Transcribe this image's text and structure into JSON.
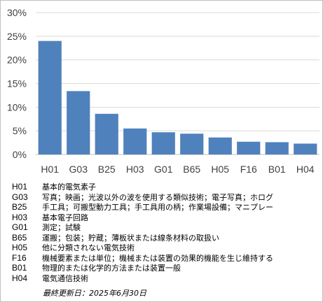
{
  "chart_data": {
    "type": "bar",
    "categories": [
      "H01",
      "G03",
      "B25",
      "H03",
      "G01",
      "B65",
      "H05",
      "F16",
      "B01",
      "H04"
    ],
    "values": [
      24.0,
      13.4,
      8.6,
      5.5,
      4.7,
      4.4,
      3.6,
      2.7,
      2.6,
      2.3
    ],
    "ylim": [
      0,
      30
    ],
    "yticks": [
      0,
      5,
      10,
      15,
      20,
      25,
      30
    ],
    "ytick_labels": [
      "0%",
      "5%",
      "10%",
      "15%",
      "20%",
      "25%",
      "30%"
    ],
    "grid": true,
    "bar_color": "#4f81bd",
    "grid_color": "#d9d9d9",
    "title": "",
    "xlabel": "",
    "ylabel": ""
  },
  "legend": [
    {
      "code": "H01",
      "desc": "基本的電気素子"
    },
    {
      "code": "G03",
      "desc": "写真；映画；光波以外の波を使用する類似技術；電子写真；ホログ"
    },
    {
      "code": "B25",
      "desc": "手工具；可搬型動力工具；手工具用の柄；作業場設備；マニプレー"
    },
    {
      "code": "H03",
      "desc": "基本電子回路"
    },
    {
      "code": "G01",
      "desc": "測定；試験"
    },
    {
      "code": "B65",
      "desc": "運搬；包装；貯蔵；薄板状または線条材料の取扱い"
    },
    {
      "code": "H05",
      "desc": "他に分類されない電気技術"
    },
    {
      "code": "F16",
      "desc": "機械要素または単位；機械または装置の効果的機能を生じ維持する"
    },
    {
      "code": "B01",
      "desc": "物理的または化学的方法または装置一般"
    },
    {
      "code": "H04",
      "desc": "電気通信技術"
    }
  ],
  "footnote": "最終更新日：2025年6月30日"
}
